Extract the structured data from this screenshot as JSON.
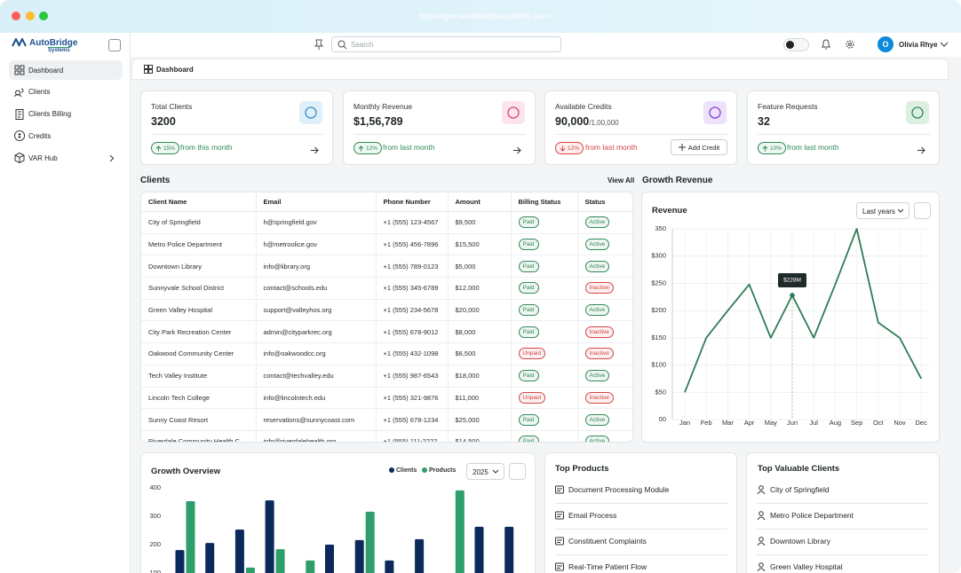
{
  "browser": {
    "url": "https://gov.autobridgesystems.com/"
  },
  "sidebar": {
    "logo": "AutoBridge",
    "logo_sub": "Systems",
    "nav": [
      "Dashboard",
      "Clients",
      "Clients Billing",
      "Credits",
      "VAR Hub"
    ]
  },
  "topbar": {
    "search_placeholder": "Search",
    "user_initial": "O",
    "user_name": "Olivia Rhye"
  },
  "breadcrumb": "Dashboard",
  "stats": [
    {
      "label": "Total Clients",
      "value": "3200",
      "change": "15%",
      "trend": "up",
      "note": "from this month"
    },
    {
      "label": "Monthly Revenue",
      "value": "$1,56,789",
      "change": "12%",
      "trend": "up",
      "note": "from last month"
    },
    {
      "label": "Available Credits",
      "value": "90,000",
      "suffix": "/1,00,000",
      "change": "12%",
      "trend": "down",
      "note": "from last month",
      "button": "Add Credit"
    },
    {
      "label": "Feature Requests",
      "value": "32",
      "change": "10%",
      "trend": "up",
      "note": "from last month"
    }
  ],
  "clients": {
    "title": "Clients",
    "action": "View All",
    "columns": [
      "Client Name",
      "Email",
      "Phone Number",
      "Amount",
      "Billing Status",
      "Status"
    ],
    "rows": [
      [
        "City of Springfield",
        "h@springfield.gov",
        "+1 (555) 123-4567",
        "$9,500",
        {
          "label": "Paid",
          "color": "#2f8a57"
        },
        {
          "label": "Active",
          "color": "#2f8a57"
        }
      ],
      [
        "Metro Police Department",
        "h@metroolice.gov",
        "+1 (555) 456-7896",
        "$15,500",
        {
          "label": "Paid",
          "color": "#2f8a57"
        },
        {
          "label": "Active",
          "color": "#2f8a57"
        }
      ],
      [
        "Downtown Library",
        "info@library.org",
        "+1 (555) 789-0123",
        "$5,000",
        {
          "label": "Paid",
          "color": "#2f8a57"
        },
        {
          "label": "Active",
          "color": "#2f8a57"
        }
      ],
      [
        "Sunnyvale School District",
        "contact@schools.edu",
        "+1 (555) 345-6789",
        "$12,000",
        {
          "label": "Paid",
          "color": "#2f8a57"
        },
        {
          "label": "Inactive",
          "color": "#d64545"
        }
      ],
      [
        "Green Valley Hospital",
        "support@valleyhos.org",
        "+1 (555) 234-5678",
        "$20,000",
        {
          "label": "Paid",
          "color": "#2f8a57"
        },
        {
          "label": "Active",
          "color": "#2f8a57"
        }
      ],
      [
        "City Park Recreation Center",
        "admin@cityparkrec.org",
        "+1 (555) 678-9012",
        "$8,000",
        {
          "label": "Paid",
          "color": "#2f8a57"
        },
        {
          "label": "Inactive",
          "color": "#d64545"
        }
      ],
      [
        "Oakwood Community Center",
        "info@oakwoodcc.org",
        "+1 (555) 432-1098",
        "$6,500",
        {
          "label": "Unpaid",
          "color": "#d64545"
        },
        {
          "label": "Inactive",
          "color": "#d64545"
        }
      ],
      [
        "Tech Valley Institute",
        "contact@techvalley.edu",
        "+1 (555) 987-6543",
        "$18,000",
        {
          "label": "Paid",
          "color": "#2f8a57"
        },
        {
          "label": "Active",
          "color": "#2f8a57"
        }
      ],
      [
        "Lincoln Tech College",
        "info@lincolntech.edu",
        "+1 (555) 321-9876",
        "$11,000",
        {
          "label": "Unpaid",
          "color": "#d64545"
        },
        {
          "label": "Inactive",
          "color": "#d64545"
        }
      ],
      [
        "Sunny Coast Resort",
        "reservations@sunnycoast.com",
        "+1 (555) 678-1234",
        "$25,000",
        {
          "label": "Paid",
          "color": "#2f8a57"
        },
        {
          "label": "Active",
          "color": "#2f8a57"
        }
      ],
      [
        "Riverdale Community Health C...",
        "info@riverdalehealth.org",
        "+1 (555) 111-2222",
        "$14,500",
        {
          "label": "Paid",
          "color": "#2f8a57"
        },
        {
          "label": "Active",
          "color": "#2f8a57"
        }
      ]
    ]
  },
  "revenue": {
    "section_title": "Growth Revenue",
    "title": "Revenue",
    "period": "Last years",
    "chart_data": {
      "type": "line",
      "categories": [
        "Jan",
        "Feb",
        "Mar",
        "Apr",
        "May",
        "Jun",
        "Jul",
        "Aug",
        "Sep",
        "Oct",
        "Nov",
        "Dec"
      ],
      "values": [
        50,
        150,
        200,
        248,
        150,
        228,
        150,
        248,
        350,
        178,
        150,
        75
      ],
      "value_labels": [
        null,
        null,
        null,
        null,
        null,
        "$228M",
        null,
        null,
        null,
        null,
        null,
        null
      ],
      "color": "#2f7d55",
      "ylim": [
        0,
        350
      ],
      "yticks": [
        {
          "value": 0,
          "label": "00"
        },
        {
          "value": 50,
          "label": "$50"
        },
        {
          "value": 100,
          "label": "$100"
        },
        {
          "value": 150,
          "label": "$150"
        },
        {
          "value": 200,
          "label": "$200"
        },
        {
          "value": 250,
          "label": "$250"
        },
        {
          "value": 300,
          "label": "$300"
        },
        350
      ],
      "grid": true
    }
  },
  "growth": {
    "title": "Growth Overview",
    "year": "2025",
    "chart_data": {
      "type": "bar",
      "series": [
        {
          "name": "Clients",
          "color": "#0b2a5b",
          "values": [
            181,
            206,
            253,
            356,
            null,
            200,
            216,
            144,
            219,
            null,
            263,
            263
          ]
        },
        {
          "name": "Products",
          "color": "#2e9e6a",
          "values": [
            353,
            null,
            119,
            184,
            144,
            null,
            316,
            null,
            null,
            391,
            null,
            null
          ]
        }
      ],
      "ylim": [
        0,
        400
      ],
      "yticks": [
        100,
        200,
        300,
        400
      ]
    }
  },
  "top_products": {
    "title": "Top Products",
    "items": [
      "Document Processing Module",
      "Email Process",
      "Constituent Complaints",
      "Real-Time Patient Flow"
    ]
  },
  "top_clients": {
    "title": "Top Valuable Clients",
    "items": [
      "City of Springfield",
      "Metro Police Department",
      "Downtown Library",
      "Green Valley Hospital"
    ]
  }
}
